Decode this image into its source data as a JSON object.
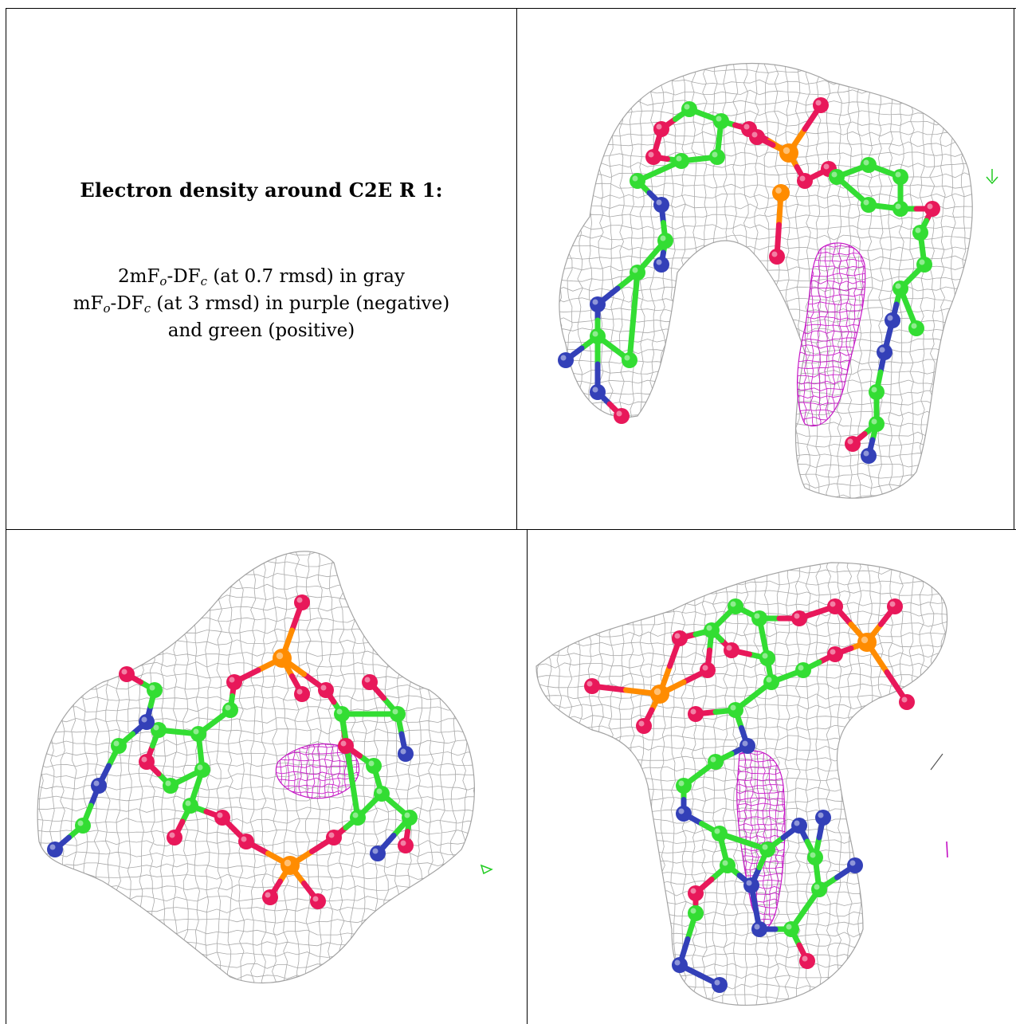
{
  "caption": {
    "title": "Electron density around C2E R 1:",
    "line1": {
      "lead": "2mF",
      "o": "o",
      "mid": "-DF",
      "c": "c",
      "rest": " (at 0.7 rmsd) in gray"
    },
    "line2": {
      "lead": "mF",
      "o": "o",
      "mid": "-DF",
      "c": "c",
      "rest": " (at 3 rmsd) in purple (negative)"
    },
    "line3": "and green (positive)"
  },
  "colors": {
    "mesh_gray": "#9a9a9a",
    "negative_purple": "#c000c0",
    "positive_green": "#22cc22",
    "carbon": "#33dd33",
    "oxygen": "#e8185a",
    "nitrogen": "#3340b8",
    "phosphorus": "#ff8c00"
  }
}
